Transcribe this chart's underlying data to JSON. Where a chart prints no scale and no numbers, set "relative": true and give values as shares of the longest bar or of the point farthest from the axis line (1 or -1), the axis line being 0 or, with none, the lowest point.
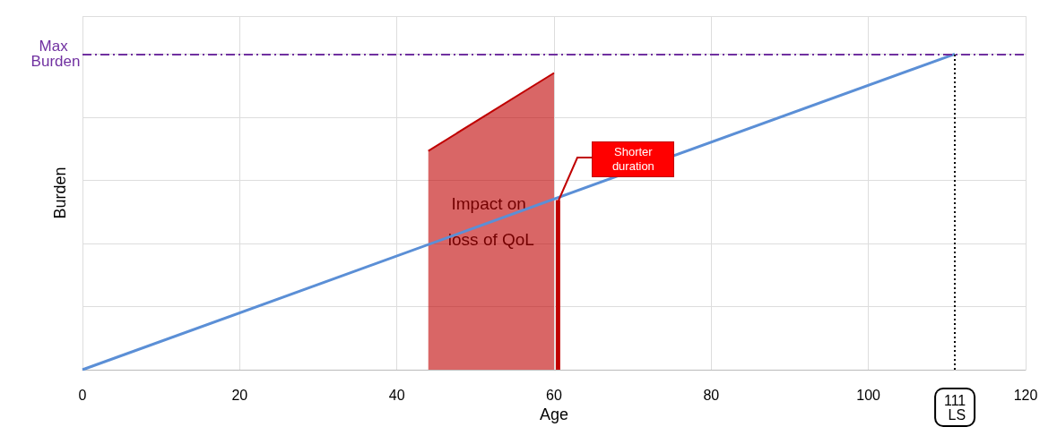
{
  "chart_data": {
    "type": "line",
    "xlabel": "Age",
    "ylabel": "Burden",
    "relative": true,
    "xlim": [
      0,
      120
    ],
    "xticks": [
      0,
      20,
      40,
      60,
      80,
      100,
      120
    ],
    "grid": true,
    "series": [
      {
        "color": "#5b8fd6",
        "x": [
          0,
          111
        ],
        "values": [
          0,
          1
        ]
      },
      {
        "type": "area",
        "color": "#c00000",
        "x": [
          44,
          60
        ],
        "values": [
          0.693,
          0.94
        ]
      },
      {
        "type": "bar",
        "color": "#c00000",
        "x": [
          60.5
        ],
        "values": [
          0.537
        ]
      }
    ],
    "ref_lines": [
      {
        "axis": "y",
        "value": 1,
        "label": "Max Burden",
        "color": "#7030a0",
        "line_style": "dashed"
      },
      {
        "axis": "x",
        "value": 111,
        "label": "111 LS",
        "color": "#000000",
        "line_style": "dotted"
      }
    ],
    "annotations": [
      {
        "text": "Impact on loss of QoL",
        "x": 52,
        "y": 0.468
      },
      "Shorter duration"
    ]
  }
}
